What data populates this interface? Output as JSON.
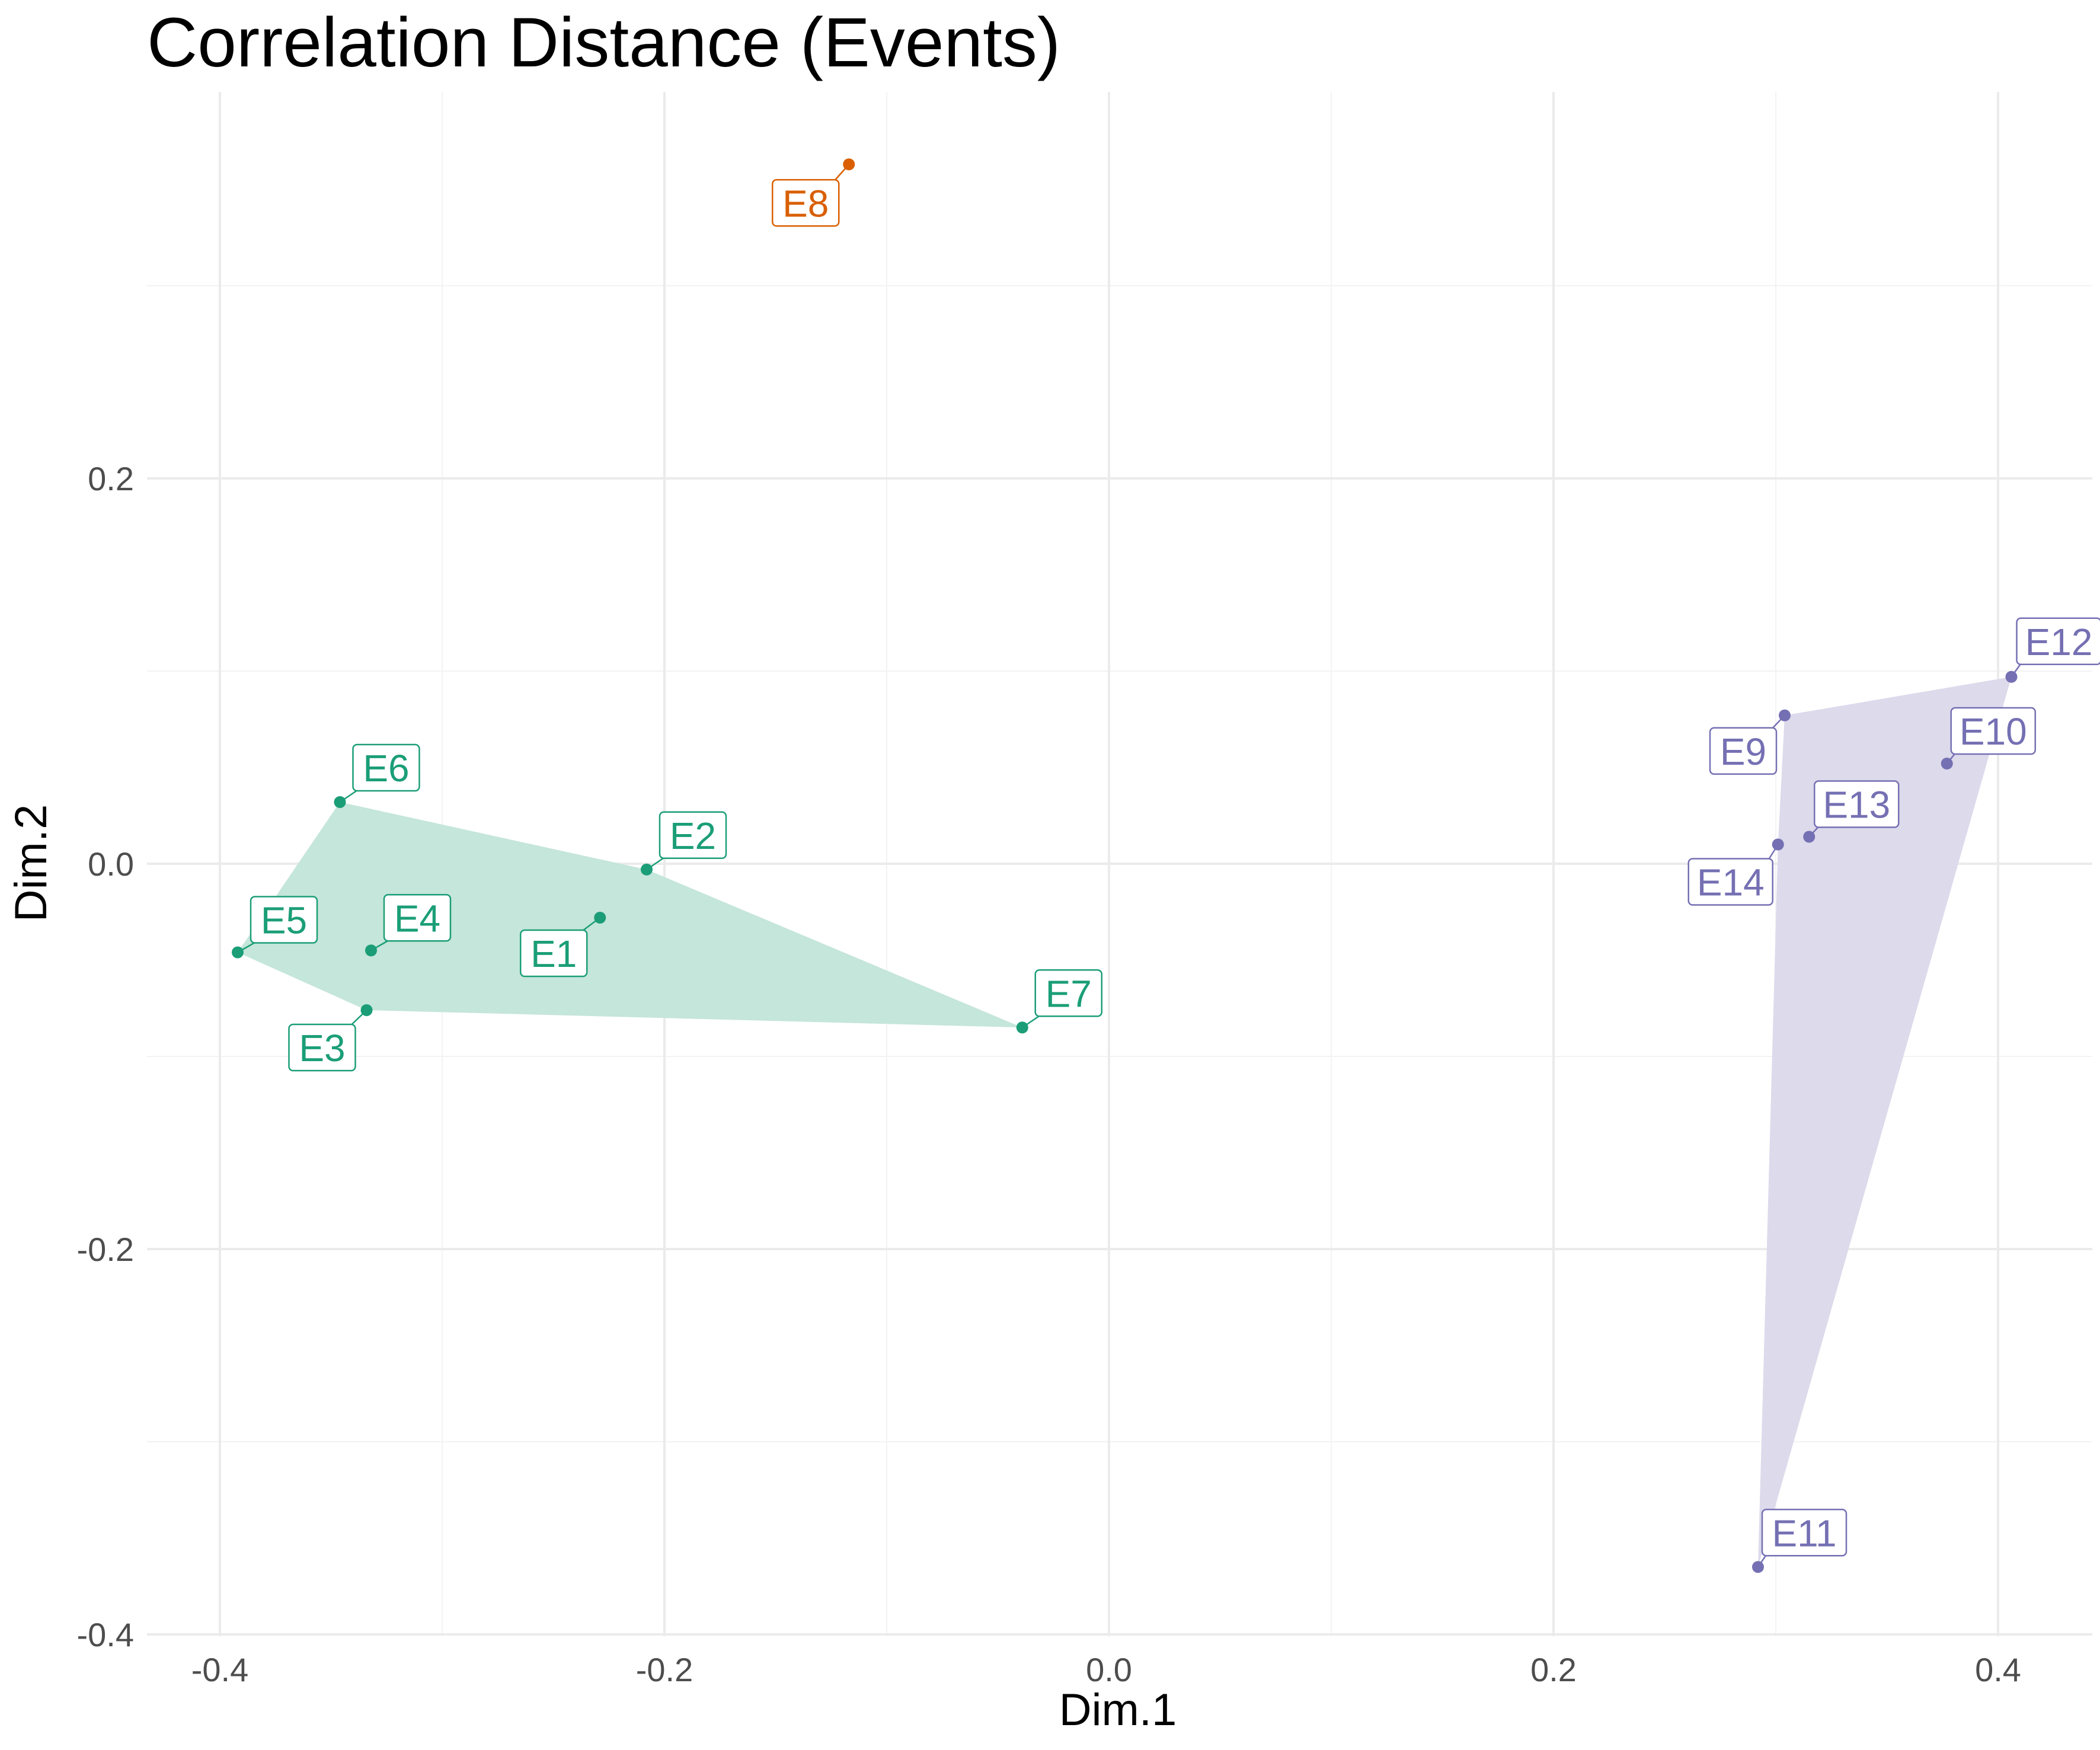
{
  "chart_data": {
    "type": "scatter",
    "title": "Correlation Distance (Events)",
    "xlabel": "Dim.1",
    "ylabel": "Dim.2",
    "xlim": [
      -0.42,
      0.44
    ],
    "ylim": [
      -0.4,
      0.42
    ],
    "x_ticks": [
      -0.4,
      -0.2,
      0.0,
      0.2,
      0.4
    ],
    "x_tick_labels": [
      "-0.4",
      "-0.2",
      "0.0",
      "0.2",
      "0.4"
    ],
    "y_ticks": [
      -0.4,
      -0.2,
      0.0,
      0.2
    ],
    "y_tick_labels": [
      "-0.4",
      "-0.2",
      "0.0",
      "0.2"
    ],
    "grid": true,
    "legend": "none",
    "clusters": [
      {
        "color": "#1b9e77",
        "fill": "#c5e6da",
        "hull": [
          "E6",
          "E2",
          "E7",
          "E3",
          "E5"
        ],
        "points": [
          {
            "label": "E1",
            "x": -0.229,
            "y": -0.028
          },
          {
            "label": "E2",
            "x": -0.208,
            "y": -0.003
          },
          {
            "label": "E3",
            "x": -0.334,
            "y": -0.076
          },
          {
            "label": "E4",
            "x": -0.332,
            "y": -0.045
          },
          {
            "label": "E5",
            "x": -0.392,
            "y": -0.046
          },
          {
            "label": "E6",
            "x": -0.346,
            "y": 0.032
          },
          {
            "label": "E7",
            "x": -0.039,
            "y": -0.085
          }
        ]
      },
      {
        "color": "#d95f02",
        "fill": "#f6d2b8",
        "hull": [],
        "points": [
          {
            "label": "E8",
            "x": -0.117,
            "y": 0.363
          }
        ]
      },
      {
        "color": "#7570b3",
        "fill": "#dcdaeb",
        "hull": [
          "E9",
          "E12",
          "E11",
          "E14"
        ],
        "points": [
          {
            "label": "E9",
            "x": 0.304,
            "y": 0.077
          },
          {
            "label": "E10",
            "x": 0.377,
            "y": 0.052
          },
          {
            "label": "E11",
            "x": 0.292,
            "y": -0.365
          },
          {
            "label": "E12",
            "x": 0.406,
            "y": 0.097
          },
          {
            "label": "E13",
            "x": 0.315,
            "y": 0.014
          },
          {
            "label": "E14",
            "x": 0.301,
            "y": 0.01
          }
        ]
      }
    ]
  }
}
